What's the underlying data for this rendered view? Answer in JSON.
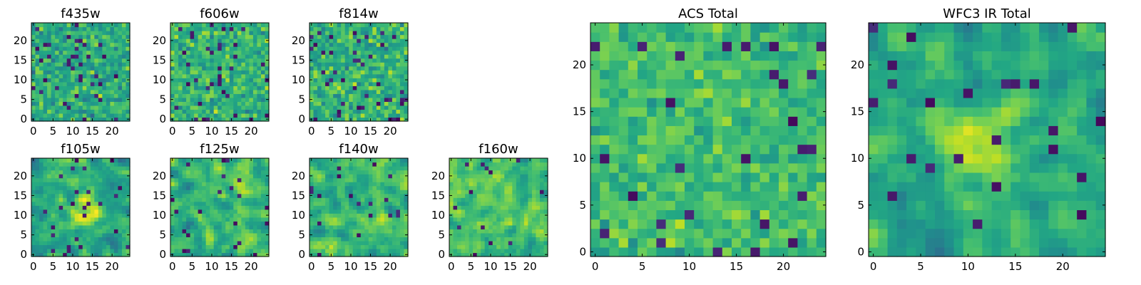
{
  "figure": {
    "grid_size": 25,
    "colormap": "viridis"
  },
  "chart_data": [
    {
      "type": "heatmap",
      "title": "f435w",
      "xticks": [
        "0",
        "5",
        "10",
        "15",
        "20"
      ],
      "yticks": [
        "0",
        "5",
        "10",
        "15",
        "20"
      ],
      "xlim": [
        -0.5,
        24.5
      ],
      "ylim": [
        -0.5,
        24.5
      ],
      "seed": 11,
      "smooth": 0,
      "mean": 0.62,
      "spread": 0.26,
      "dark_fraction": 0.06
    },
    {
      "type": "heatmap",
      "title": "f606w",
      "xticks": [
        "0",
        "5",
        "10",
        "15",
        "20"
      ],
      "yticks": [
        "0",
        "5",
        "10",
        "15",
        "20"
      ],
      "xlim": [
        -0.5,
        24.5
      ],
      "ylim": [
        -0.5,
        24.5
      ],
      "seed": 23,
      "smooth": 0,
      "mean": 0.66,
      "spread": 0.24,
      "dark_fraction": 0.05
    },
    {
      "type": "heatmap",
      "title": "f814w",
      "xticks": [
        "0",
        "5",
        "10",
        "15",
        "20"
      ],
      "yticks": [
        "0",
        "5",
        "10",
        "15",
        "20"
      ],
      "xlim": [
        -0.5,
        24.5
      ],
      "ylim": [
        -0.5,
        24.5
      ],
      "seed": 37,
      "smooth": 0,
      "mean": 0.64,
      "spread": 0.25,
      "dark_fraction": 0.05
    },
    {
      "type": "heatmap",
      "title": "f105w",
      "xticks": [
        "0",
        "5",
        "10",
        "15",
        "20"
      ],
      "yticks": [
        "0",
        "5",
        "10",
        "15",
        "20"
      ],
      "xlim": [
        -0.5,
        24.5
      ],
      "ylim": [
        -0.5,
        24.5
      ],
      "seed": 41,
      "smooth": 1,
      "mean": 0.58,
      "spread": 0.22,
      "dark_fraction": 0.04,
      "bright_center": [
        13,
        11
      ]
    },
    {
      "type": "heatmap",
      "title": "f125w",
      "xticks": [
        "0",
        "5",
        "10",
        "15",
        "20"
      ],
      "yticks": [
        "0",
        "5",
        "10",
        "15",
        "20"
      ],
      "xlim": [
        -0.5,
        24.5
      ],
      "ylim": [
        -0.5,
        24.5
      ],
      "seed": 53,
      "smooth": 1,
      "mean": 0.64,
      "spread": 0.24,
      "dark_fraction": 0.04
    },
    {
      "type": "heatmap",
      "title": "f140w",
      "xticks": [
        "0",
        "5",
        "10",
        "15",
        "20"
      ],
      "yticks": [
        "0",
        "5",
        "10",
        "15",
        "20"
      ],
      "xlim": [
        -0.5,
        24.5
      ],
      "ylim": [
        -0.5,
        24.5
      ],
      "seed": 67,
      "smooth": 1,
      "mean": 0.68,
      "spread": 0.22,
      "dark_fraction": 0.03
    },
    {
      "type": "heatmap",
      "title": "f160w",
      "xticks": [
        "0",
        "5",
        "10",
        "15",
        "20"
      ],
      "yticks": [
        "0",
        "5",
        "10",
        "15",
        "20"
      ],
      "xlim": [
        -0.5,
        24.5
      ],
      "ylim": [
        -0.5,
        24.5
      ],
      "seed": 79,
      "smooth": 1,
      "mean": 0.68,
      "spread": 0.2,
      "dark_fraction": 0.02
    },
    {
      "type": "heatmap",
      "title": "ACS Total",
      "xticks": [
        "0",
        "5",
        "10",
        "15",
        "20"
      ],
      "yticks": [
        "0",
        "5",
        "10",
        "15",
        "20"
      ],
      "xlim": [
        -0.5,
        24.5
      ],
      "ylim": [
        -0.5,
        24.5
      ],
      "seed": 97,
      "smooth": 0,
      "mean": 0.68,
      "spread": 0.2,
      "dark_fraction": 0.03
    },
    {
      "type": "heatmap",
      "title": "WFC3 IR Total",
      "xticks": [
        "0",
        "5",
        "10",
        "15",
        "20"
      ],
      "yticks": [
        "0",
        "5",
        "10",
        "15",
        "20"
      ],
      "xlim": [
        -0.5,
        24.5
      ],
      "ylim": [
        -0.5,
        24.5
      ],
      "seed": 113,
      "smooth": 1,
      "mean": 0.6,
      "spread": 0.2,
      "dark_fraction": 0.03,
      "bright_center": [
        12,
        12
      ]
    }
  ]
}
